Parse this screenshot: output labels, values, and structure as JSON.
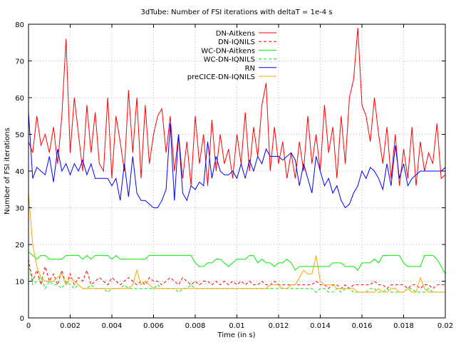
{
  "chart_data": {
    "type": "line",
    "title": "3dTube: Number of FSI iterations with deltaT = 1e-4 s",
    "xlabel": "Time (in s)",
    "ylabel": "Number of FSI iterations",
    "xlim": [
      0,
      0.02
    ],
    "ylim": [
      0,
      80
    ],
    "xticks": [
      "0",
      "0.002",
      "0.004",
      "0.006",
      "0.008",
      "0.01",
      "0.012",
      "0.014",
      "0.016",
      "0.018",
      "0.02"
    ],
    "yticks": [
      "0",
      "10",
      "20",
      "30",
      "40",
      "50",
      "60",
      "70",
      "80"
    ],
    "grid": true,
    "legend": "top-center",
    "x": [
      0,
      0.0002,
      0.0004,
      0.0006,
      0.0008,
      0.001,
      0.0012,
      0.0014,
      0.0016,
      0.0018,
      0.002,
      0.0022,
      0.0024,
      0.0026,
      0.0028,
      0.003,
      0.0032,
      0.0034,
      0.0036,
      0.0038,
      0.004,
      0.0042,
      0.0044,
      0.0046,
      0.0048,
      0.005,
      0.0052,
      0.0054,
      0.0056,
      0.0058,
      0.006,
      0.0062,
      0.0064,
      0.0066,
      0.0068,
      0.007,
      0.0072,
      0.0074,
      0.0076,
      0.0078,
      0.008,
      0.0082,
      0.0084,
      0.0086,
      0.0088,
      0.009,
      0.0092,
      0.0094,
      0.0096,
      0.0098,
      0.01,
      0.0102,
      0.0104,
      0.0106,
      0.0108,
      0.011,
      0.0112,
      0.0114,
      0.0116,
      0.0118,
      0.012,
      0.0122,
      0.0124,
      0.0126,
      0.0128,
      0.013,
      0.0132,
      0.0134,
      0.0136,
      0.0138,
      0.014,
      0.0142,
      0.0144,
      0.0146,
      0.0148,
      0.015,
      0.0152,
      0.0154,
      0.0156,
      0.0158,
      0.016,
      0.0162,
      0.0164,
      0.0166,
      0.0168,
      0.017,
      0.0172,
      0.0174,
      0.0176,
      0.0178,
      0.018,
      0.0182,
      0.0184,
      0.0186,
      0.0188,
      0.019,
      0.0192,
      0.0194,
      0.0196,
      0.0198,
      0.02
    ],
    "series": [
      {
        "name": "DN-Aitkens",
        "color": "#ff0000",
        "dash": false,
        "values": [
          48,
          45,
          55,
          47,
          50,
          45,
          52,
          42,
          55,
          76,
          45,
          60,
          50,
          40,
          58,
          45,
          56,
          42,
          40,
          60,
          38,
          55,
          48,
          40,
          62,
          45,
          60,
          38,
          58,
          42,
          50,
          55,
          57,
          45,
          55,
          40,
          50,
          38,
          48,
          36,
          55,
          42,
          50,
          36,
          54,
          40,
          50,
          42,
          46,
          38,
          50,
          42,
          56,
          40,
          52,
          44,
          58,
          64,
          40,
          52,
          42,
          48,
          38,
          45,
          38,
          48,
          40,
          55,
          42,
          50,
          40,
          58,
          45,
          52,
          38,
          55,
          42,
          60,
          65,
          79,
          58,
          55,
          48,
          60,
          50,
          42,
          52,
          38,
          50,
          36,
          46,
          38,
          52,
          36,
          48,
          40,
          45,
          42,
          53,
          38,
          39
        ]
      },
      {
        "name": "DN-IQNILS",
        "color": "#ff0000",
        "dash": true,
        "values": [
          16,
          10,
          13,
          9,
          14,
          10,
          12,
          9,
          13,
          9,
          12,
          9,
          11,
          10,
          13,
          9,
          10,
          11,
          10,
          9,
          11,
          10,
          9,
          10,
          11,
          10,
          9,
          10,
          9,
          11,
          10,
          10,
          9,
          10,
          11,
          10,
          9,
          11,
          10,
          9,
          10,
          9,
          10,
          10,
          9,
          10,
          9,
          10,
          9,
          10,
          9,
          10,
          9,
          10,
          9,
          9,
          10,
          9,
          9,
          10,
          9,
          9,
          9,
          9,
          9,
          9,
          9,
          9,
          9,
          10,
          9,
          9,
          8,
          9,
          9,
          8,
          9,
          8,
          9,
          9,
          9,
          9,
          9,
          10,
          9,
          9,
          8,
          9,
          9,
          9,
          9,
          8,
          9,
          9,
          8,
          9,
          9,
          8,
          9,
          9,
          9
        ]
      },
      {
        "name": "WC-DN-Aitkens",
        "color": "#00ee00",
        "dash": false,
        "values": [
          18,
          17,
          16,
          17,
          17,
          16,
          16,
          16,
          16,
          17,
          17,
          17,
          17,
          16,
          17,
          16,
          17,
          17,
          17,
          17,
          16,
          17,
          16,
          16,
          16,
          16,
          16,
          16,
          16,
          17,
          17,
          17,
          17,
          17,
          17,
          17,
          17,
          17,
          17,
          17,
          15,
          14,
          14,
          15,
          15,
          16,
          16,
          15,
          14,
          15,
          16,
          16,
          16,
          17,
          17,
          15,
          16,
          15,
          15,
          14,
          15,
          15,
          16,
          15,
          13,
          14,
          14,
          14,
          14,
          14,
          14,
          14,
          14,
          15,
          15,
          15,
          14,
          14,
          14,
          13,
          15,
          15,
          15,
          16,
          15,
          17,
          17,
          17,
          17,
          17,
          15,
          14,
          14,
          14,
          14,
          17,
          17,
          17,
          16,
          14,
          12
        ]
      },
      {
        "name": "WC-DN-IQNILS",
        "color": "#00ee00",
        "dash": true,
        "values": [
          15,
          9,
          10,
          11,
          8,
          10,
          9,
          9,
          8,
          10,
          9,
          8,
          9,
          8,
          8,
          9,
          8,
          8,
          8,
          7,
          8,
          8,
          8,
          9,
          8,
          8,
          8,
          8,
          8,
          8,
          8,
          9,
          8,
          8,
          8,
          8,
          7,
          8,
          8,
          9,
          8,
          8,
          8,
          8,
          8,
          8,
          8,
          8,
          8,
          8,
          8,
          8,
          8,
          8,
          8,
          8,
          8,
          8,
          8,
          8,
          8,
          8,
          8,
          8,
          8,
          8,
          8,
          8,
          8,
          7,
          8,
          8,
          7,
          7,
          8,
          7,
          8,
          8,
          7,
          7,
          7,
          7,
          8,
          8,
          7,
          7,
          8,
          7,
          7,
          7,
          7,
          8,
          8,
          7,
          7,
          7,
          8,
          7,
          7,
          7,
          7
        ]
      },
      {
        "name": "RN",
        "color": "#0000ff",
        "dash": false,
        "values": [
          56,
          38,
          41,
          40,
          39,
          44,
          37,
          46,
          40,
          42,
          39,
          42,
          40,
          43,
          39,
          42,
          38,
          38,
          38,
          38,
          36,
          38,
          32,
          42,
          33,
          44,
          34,
          32,
          32,
          31,
          30,
          30,
          32,
          35,
          53,
          32,
          50,
          34,
          32,
          36,
          35,
          37,
          36,
          48,
          38,
          44,
          40,
          39,
          39,
          40,
          38,
          42,
          38,
          43,
          40,
          44,
          42,
          46,
          44,
          44,
          44,
          43,
          44,
          45,
          43,
          36,
          42,
          38,
          34,
          44,
          40,
          36,
          38,
          34,
          36,
          32,
          30,
          31,
          34,
          36,
          40,
          38,
          41,
          40,
          38,
          35,
          42,
          36,
          47,
          38,
          42,
          36,
          38,
          39,
          40,
          40,
          40,
          40,
          40,
          40,
          41
        ]
      },
      {
        "name": "preCICE-DN-IQNILS",
        "color": "#ffa500",
        "dash": false,
        "values": [
          34,
          20,
          14,
          11,
          10,
          10,
          10,
          11,
          12,
          9,
          11,
          10,
          9,
          8,
          8,
          8,
          8,
          8,
          8,
          8,
          8,
          8,
          8,
          8,
          8,
          9,
          13,
          9,
          10,
          9,
          8,
          8,
          8,
          8,
          8,
          8,
          8,
          8,
          8,
          8,
          8,
          8,
          8,
          8,
          8,
          8,
          8,
          8,
          8,
          8,
          8,
          8,
          8,
          8,
          8,
          8,
          8,
          8,
          9,
          9,
          9,
          8,
          8,
          9,
          9,
          11,
          13,
          12,
          12,
          17,
          10,
          9,
          9,
          9,
          8,
          8,
          8,
          8,
          8,
          7,
          7,
          7,
          7,
          7,
          8,
          7,
          7,
          8,
          8,
          7,
          7,
          8,
          7,
          7,
          11,
          8,
          7,
          7,
          7,
          7,
          7
        ]
      }
    ]
  }
}
